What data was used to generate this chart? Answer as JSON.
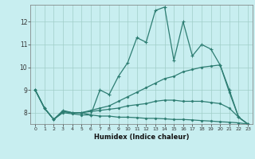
{
  "xlabel": "Humidex (Indice chaleur)",
  "bg_color": "#c8eef0",
  "line_color": "#2d7d72",
  "grid_color": "#a0cec8",
  "xlim": [
    -0.5,
    23.5
  ],
  "ylim": [
    7.5,
    12.75
  ],
  "yticks": [
    8,
    9,
    10,
    11,
    12
  ],
  "xticks": [
    0,
    1,
    2,
    3,
    4,
    5,
    6,
    7,
    8,
    9,
    10,
    11,
    12,
    13,
    14,
    15,
    16,
    17,
    18,
    19,
    20,
    21,
    22,
    23
  ],
  "series": [
    [
      9.0,
      8.2,
      7.7,
      8.1,
      8.0,
      8.0,
      7.9,
      9.0,
      8.8,
      9.6,
      10.2,
      11.3,
      11.1,
      12.5,
      12.65,
      10.3,
      12.0,
      10.5,
      11.0,
      10.8,
      10.1,
      9.0,
      7.8,
      7.5
    ],
    [
      9.0,
      8.2,
      7.7,
      8.05,
      8.0,
      8.0,
      8.1,
      8.2,
      8.3,
      8.5,
      8.7,
      8.9,
      9.1,
      9.3,
      9.5,
      9.6,
      9.8,
      9.9,
      10.0,
      10.05,
      10.1,
      8.9,
      7.8,
      7.5
    ],
    [
      9.0,
      8.2,
      7.7,
      8.05,
      8.0,
      8.0,
      8.05,
      8.1,
      8.15,
      8.2,
      8.3,
      8.35,
      8.4,
      8.5,
      8.55,
      8.55,
      8.5,
      8.5,
      8.5,
      8.45,
      8.4,
      8.2,
      7.8,
      7.5
    ],
    [
      9.0,
      8.2,
      7.7,
      8.0,
      7.95,
      7.9,
      7.9,
      7.85,
      7.85,
      7.8,
      7.8,
      7.78,
      7.75,
      7.75,
      7.73,
      7.7,
      7.7,
      7.68,
      7.65,
      7.63,
      7.6,
      7.58,
      7.55,
      7.5
    ]
  ]
}
